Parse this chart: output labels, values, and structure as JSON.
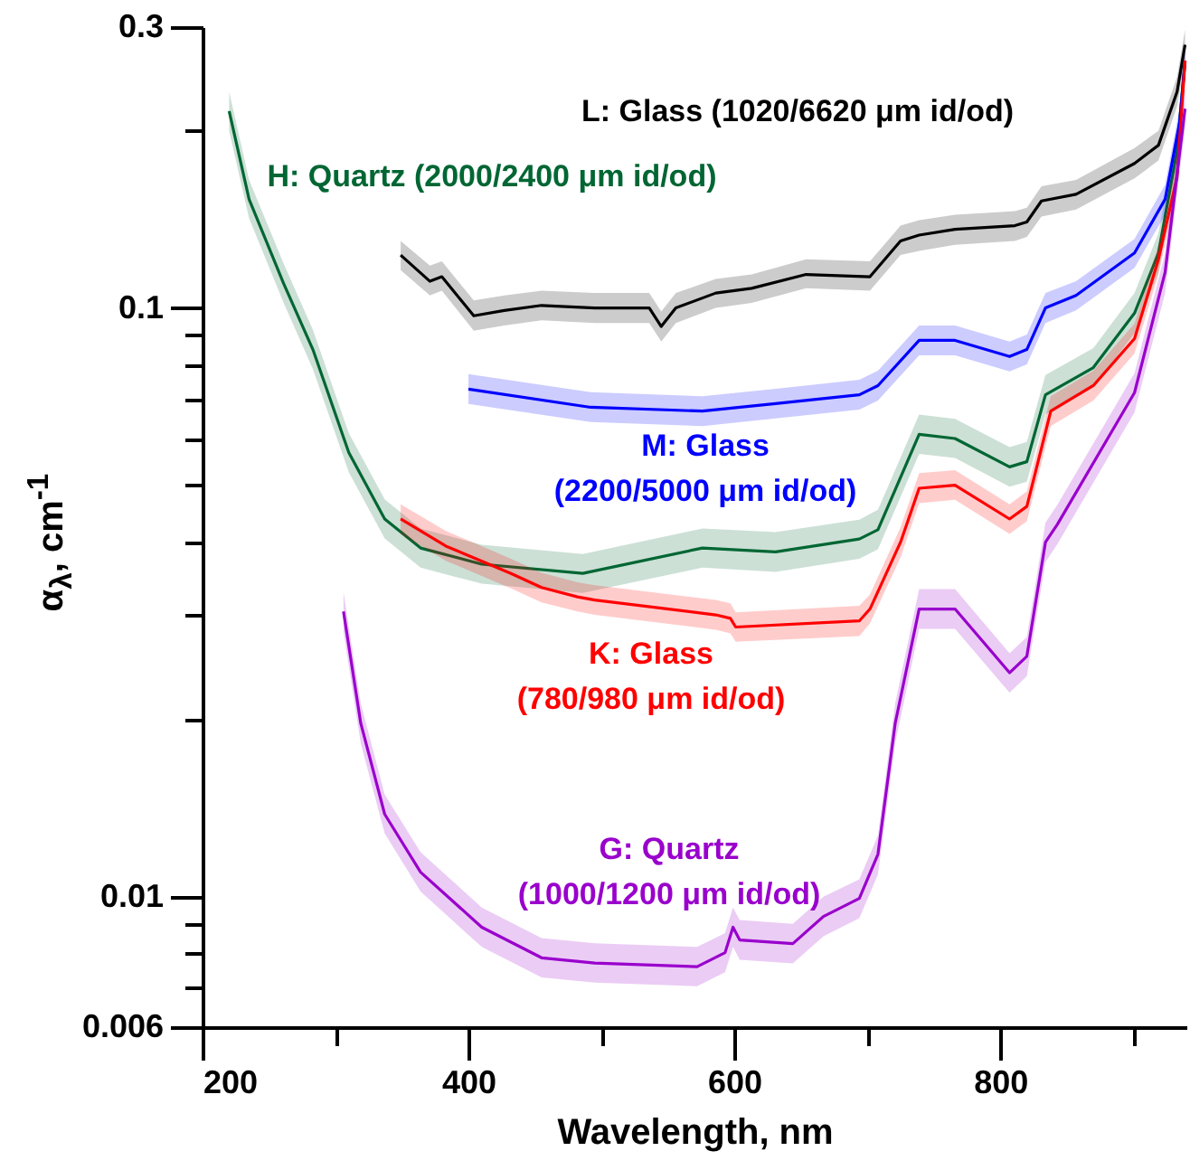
{
  "chart_data": {
    "type": "line",
    "xlabel": "Wavelength, nm",
    "ylabel": "α$_{λ}$, cm$^{-1}$",
    "log": "y",
    "xlim": [
      200,
      940
    ],
    "ylim": [
      0.006,
      0.3
    ],
    "xticks": [
      200,
      {
        "value": 300,
        "label": null
      },
      400,
      {
        "value": 500,
        "label": null
      },
      600,
      {
        "value": 700,
        "label": null
      },
      800,
      {
        "value": 900,
        "label": null
      }
    ],
    "yticks": [
      0.006,
      {
        "value": 0.007,
        "label": null
      },
      {
        "value": 0.008,
        "label": null
      },
      {
        "value": 0.009,
        "label": null
      },
      0.01,
      {
        "value": 0.02,
        "label": null
      },
      {
        "value": 0.03,
        "label": null
      },
      {
        "value": 0.04,
        "label": null
      },
      {
        "value": 0.05,
        "label": null
      },
      {
        "value": 0.06,
        "label": null
      },
      {
        "value": 0.07,
        "label": null
      },
      {
        "value": 0.08,
        "label": null
      },
      {
        "value": 0.09,
        "label": null
      },
      0.1,
      {
        "value": 0.2,
        "label": null
      },
      0.3
    ],
    "series": [
      {
        "name": "L: Glass (1020/6620 μm id/od)",
        "color": "#000000",
        "x": [
          349,
          371,
          380,
          404,
          427,
          455,
          495,
          536,
          545,
          556,
          586,
          613,
          654,
          702,
          725,
          739,
          766,
          811,
          820,
          831,
          857,
          901,
          919,
          933,
          939
        ],
        "values": [
          0.123,
          0.111,
          0.113,
          0.097,
          0.099,
          0.101,
          0.1,
          0.1,
          0.093,
          0.1,
          0.106,
          0.108,
          0.114,
          0.113,
          0.13,
          0.133,
          0.136,
          0.138,
          0.14,
          0.152,
          0.156,
          0.176,
          0.189,
          0.233,
          0.28
        ],
        "lower": [
          0.116,
          0.105,
          0.107,
          0.0915,
          0.0934,
          0.0953,
          0.0943,
          0.0943,
          0.0877,
          0.0943,
          0.1,
          0.102,
          0.108,
          0.107,
          0.123,
          0.125,
          0.128,
          0.13,
          0.132,
          0.143,
          0.147,
          0.166,
          0.178,
          0.22,
          0.264
        ],
        "upper": [
          0.13,
          0.118,
          0.12,
          0.103,
          0.105,
          0.107,
          0.106,
          0.106,
          0.0986,
          0.106,
          0.112,
          0.114,
          0.121,
          0.12,
          0.138,
          0.141,
          0.144,
          0.146,
          0.148,
          0.161,
          0.165,
          0.187,
          0.2,
          0.247,
          0.297
        ]
      },
      {
        "name": "H: Quartz (2000/2400 μm id/od)",
        "color": "#006633",
        "x": [
          220,
          235,
          261,
          283,
          310,
          337,
          364,
          410,
          486,
          576,
          631,
          694,
          708,
          739,
          766,
          807,
          820,
          834,
          870,
          901,
          919,
          933,
          939
        ],
        "values": [
          0.216,
          0.153,
          0.11,
          0.085,
          0.0568,
          0.0438,
          0.0391,
          0.0367,
          0.0354,
          0.0391,
          0.0385,
          0.0405,
          0.042,
          0.061,
          0.06,
          0.0537,
          0.0548,
          0.0712,
          0.0792,
          0.098,
          0.124,
          0.185,
          0.263
        ],
        "lower": [
          0.2,
          0.142,
          0.102,
          0.0787,
          0.0526,
          0.0406,
          0.0362,
          0.034,
          0.0328,
          0.0362,
          0.0356,
          0.0375,
          0.0389,
          0.0565,
          0.0556,
          0.0497,
          0.0507,
          0.0659,
          0.0733,
          0.0907,
          0.115,
          0.171,
          0.244
        ],
        "upper": [
          0.233,
          0.165,
          0.119,
          0.0918,
          0.0613,
          0.0473,
          0.0422,
          0.0396,
          0.0382,
          0.0422,
          0.0416,
          0.0437,
          0.0454,
          0.0659,
          0.0648,
          0.058,
          0.0592,
          0.0769,
          0.0855,
          0.106,
          0.134,
          0.2,
          0.284
        ]
      },
      {
        "name": "M: Glass (2200/5000 μm id/od)",
        "color": "#0000ff",
        "x": [
          400,
          492,
          576,
          631,
          694,
          708,
          739,
          766,
          807,
          820,
          834,
          857,
          901,
          924,
          935,
          939
        ],
        "values": [
          0.0728,
          0.0678,
          0.0668,
          0.0688,
          0.0712,
          0.0738,
          0.0881,
          0.0881,
          0.0827,
          0.085,
          0.1,
          0.105,
          0.124,
          0.153,
          0.207,
          0.263
        ],
        "lower": [
          0.0687,
          0.064,
          0.063,
          0.0649,
          0.0672,
          0.0696,
          0.0831,
          0.0831,
          0.078,
          0.0802,
          0.0943,
          0.0991,
          0.117,
          0.144,
          0.195,
          0.248
        ],
        "upper": [
          0.0772,
          0.0719,
          0.0708,
          0.0729,
          0.0755,
          0.0782,
          0.0934,
          0.0934,
          0.0877,
          0.0901,
          0.106,
          0.111,
          0.131,
          0.162,
          0.219,
          0.279
        ]
      },
      {
        "name": "K: Glass (780/980 μm id/od)",
        "color": "#ff0000",
        "x": [
          349,
          383,
          432,
          455,
          482,
          495,
          586,
          597,
          601,
          694,
          702,
          725,
          739,
          766,
          807,
          820,
          838,
          870,
          901,
          919,
          933,
          939
        ],
        "values": [
          0.0438,
          0.0394,
          0.0354,
          0.0335,
          0.0323,
          0.0319,
          0.0301,
          0.0297,
          0.0287,
          0.0294,
          0.0308,
          0.04,
          0.0494,
          0.05,
          0.0438,
          0.046,
          0.0668,
          0.0738,
          0.0887,
          0.121,
          0.167,
          0.263
        ],
        "lower": [
          0.0413,
          0.0372,
          0.0334,
          0.0316,
          0.0305,
          0.0301,
          0.0284,
          0.028,
          0.0271,
          0.0277,
          0.0291,
          0.0377,
          0.0466,
          0.0472,
          0.0413,
          0.0434,
          0.063,
          0.0696,
          0.0837,
          0.114,
          0.158,
          0.248
        ],
        "upper": [
          0.0464,
          0.0418,
          0.0375,
          0.0355,
          0.0342,
          0.0338,
          0.0319,
          0.0315,
          0.0304,
          0.0312,
          0.0326,
          0.0424,
          0.0524,
          0.053,
          0.0464,
          0.0488,
          0.0708,
          0.0782,
          0.094,
          0.128,
          0.177,
          0.279
        ]
      },
      {
        "name": "G: Quartz (1000/1200 μm id/od)",
        "color": "#9900cc",
        "x": [
          306,
          319,
          337,
          364,
          410,
          455,
          495,
          572,
          593,
          599,
          604,
          644,
          667,
          694,
          708,
          721,
          739,
          766,
          807,
          820,
          834,
          843,
          901,
          924,
          939
        ],
        "values": [
          0.0305,
          0.0197,
          0.0138,
          0.011,
          0.00887,
          0.00787,
          0.00771,
          0.0076,
          0.00803,
          0.00887,
          0.00844,
          0.00832,
          0.00925,
          0.00993,
          0.0118,
          0.0197,
          0.0308,
          0.0308,
          0.024,
          0.0256,
          0.04,
          0.0429,
          0.0718,
          0.115,
          0.218
        ],
        "lower": [
          0.0282,
          0.0182,
          0.0128,
          0.0102,
          0.00821,
          0.00729,
          0.00714,
          0.00704,
          0.00744,
          0.00821,
          0.00781,
          0.0077,
          0.00856,
          0.00919,
          0.0109,
          0.0182,
          0.0285,
          0.0285,
          0.0222,
          0.0237,
          0.037,
          0.0397,
          0.0665,
          0.106,
          0.202
        ],
        "upper": [
          0.0329,
          0.0213,
          0.0149,
          0.0119,
          0.00958,
          0.0085,
          0.00833,
          0.00821,
          0.00867,
          0.00958,
          0.00912,
          0.00899,
          0.00999,
          0.0107,
          0.0127,
          0.0213,
          0.0333,
          0.0333,
          0.0259,
          0.0276,
          0.0432,
          0.0463,
          0.0775,
          0.124,
          0.235
        ]
      }
    ]
  }
}
